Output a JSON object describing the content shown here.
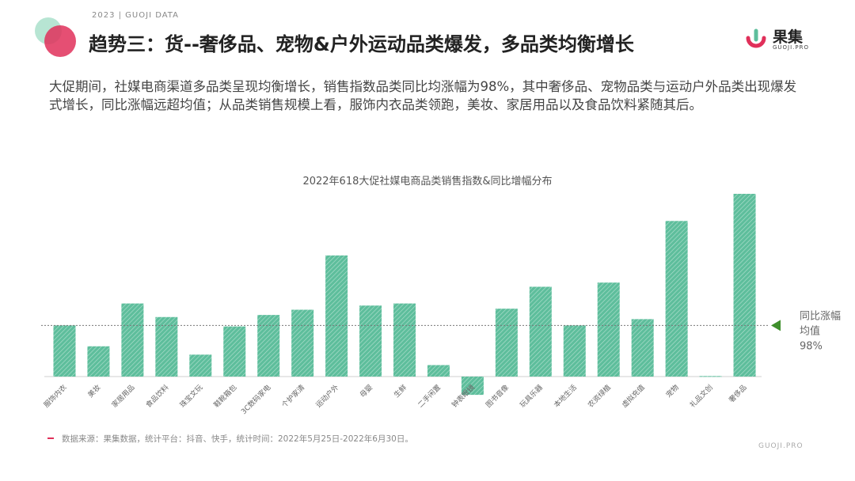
{
  "header": {
    "topline": "2023 | GUOJI DATA",
    "title": "趋势三：货--奢侈品、宠物&户外运动品类爆发，多品类均衡增长",
    "brand_name": "果集",
    "brand_sub": "GUOJI.PRO"
  },
  "intro": {
    "text": "大促期间，社媒电商渠道多品类呈现均衡增长，销售指数品类同比均涨幅为98%，其中奢侈品、宠物品类与运动户外品类出现爆发式增长，同比涨幅远超均值；从品类销售规模上看，服饰内衣品类领跑，美妆、家居用品以及食品饮料紧随其后。"
  },
  "chart_data": {
    "type": "bar",
    "title": "2022年618大促社媒电商品类销售指数&同比增幅分布",
    "categories": [
      "服饰内衣",
      "美妆",
      "家居用品",
      "食品饮料",
      "珠宝文玩",
      "鞋靴箱包",
      "3C数码家电",
      "个护家清",
      "运动户外",
      "母婴",
      "生鲜",
      "二手闲置",
      "钟表眼镜",
      "图书音像",
      "玩具乐器",
      "本地生活",
      "农资绿植",
      "虚拟充值",
      "宠物",
      "礼品文创",
      "奢侈品"
    ],
    "values": [
      98,
      58,
      140,
      114,
      42,
      96,
      118,
      128,
      232,
      136,
      140,
      22,
      -35,
      130,
      172,
      98,
      180,
      110,
      298,
      1,
      350
    ],
    "ylim": [
      -50,
      360
    ],
    "reference_line": {
      "value": 98,
      "label_lines": [
        "同比涨幅",
        "均值",
        "98%"
      ]
    },
    "bar_color": "#5ebe9c",
    "grid": false
  },
  "footer": {
    "source": "数据来源：果集数据，统计平台：抖音、快手，统计时间：2022年5月25日-2022年6月30日。",
    "brand": "GUOJI.PRO"
  }
}
